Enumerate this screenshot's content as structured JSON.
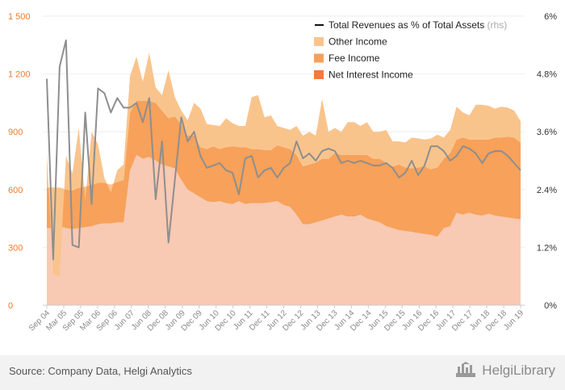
{
  "chart_data": {
    "type": "area",
    "title": "",
    "xlabel": "",
    "ylabel": "",
    "ylim": [
      0,
      1500
    ],
    "y2lim": [
      0,
      6
    ],
    "yticks": [
      "0",
      "300",
      "600",
      "900",
      "1 200",
      "1 500"
    ],
    "y2ticks": [
      "0%",
      "1.2%",
      "2.4%",
      "3.6%",
      "4.8%",
      "6%"
    ],
    "x_tick_labels": [
      "Sep 04",
      "Mar 05",
      "Sep 05",
      "Mar 06",
      "Sep 06",
      "Jun 07",
      "Jun 08",
      "Dec 08",
      "Jun 09",
      "Dec 09",
      "Jun 10",
      "Dec 10",
      "Jun 11",
      "Dec 11",
      "Jun 12",
      "Dec 12",
      "Jun 13",
      "Dec 13",
      "Jun 14",
      "Dec 14",
      "Jun 15",
      "Dec 15",
      "Jun 16",
      "Dec 16",
      "Jun 17",
      "Dec 17",
      "Jun 18",
      "Dec 18",
      "Jun 19"
    ],
    "grid": true,
    "legend_position": "top-right",
    "series": [
      {
        "name": "Net Interest Income",
        "kind": "area",
        "color": "#f8c9b3",
        "values": [
          400,
          400,
          410,
          400,
          395,
          400,
          405,
          410,
          420,
          425,
          425,
          430,
          430,
          700,
          780,
          760,
          770,
          750,
          730,
          720,
          710,
          650,
          600,
          580,
          560,
          540,
          535,
          540,
          530,
          525,
          540,
          525,
          530,
          530,
          530,
          535,
          540,
          520,
          510,
          470,
          420,
          420,
          430,
          440,
          450,
          460,
          470,
          460,
          460,
          470,
          450,
          440,
          430,
          410,
          400,
          390,
          385,
          380,
          375,
          370,
          365,
          355,
          400,
          410,
          480,
          470,
          480,
          470,
          465,
          475,
          465,
          460,
          455,
          450,
          445
        ]
      },
      {
        "name": "Fee Income",
        "kind": "area",
        "color": "#f7a15a",
        "values": [
          210,
          210,
          200,
          200,
          200,
          210,
          210,
          215,
          215,
          210,
          200,
          210,
          220,
          300,
          280,
          300,
          290,
          300,
          280,
          250,
          270,
          290,
          280,
          300,
          260,
          270,
          290,
          270,
          290,
          300,
          280,
          295,
          280,
          280,
          275,
          270,
          290,
          300,
          300,
          310,
          300,
          310,
          310,
          320,
          310,
          330,
          310,
          320,
          320,
          310,
          330,
          320,
          330,
          330,
          320,
          340,
          330,
          330,
          340,
          350,
          340,
          360,
          360,
          380,
          380,
          400,
          380,
          390,
          395,
          385,
          405,
          410,
          420,
          420,
          400
        ]
      },
      {
        "name": "Other Income",
        "kind": "area",
        "color": "#f9c48c",
        "values": [
          180,
          -450,
          -460,
          175,
          90,
          310,
          -70,
          275,
          200,
          25,
          -40,
          60,
          80,
          190,
          230,
          100,
          250,
          80,
          80,
          250,
          100,
          70,
          80,
          170,
          200,
          130,
          110,
          120,
          150,
          120,
          110,
          110,
          270,
          280,
          170,
          180,
          100,
          100,
          100,
          150,
          160,
          170,
          140,
          310,
          140,
          130,
          120,
          170,
          170,
          150,
          170,
          140,
          140,
          170,
          130,
          120,
          130,
          160,
          150,
          140,
          160,
          170,
          110,
          120,
          170,
          130,
          125,
          180,
          180,
          175,
          150,
          160,
          150,
          140,
          110
        ]
      },
      {
        "name": "Total Revenues as % of Total Assets",
        "name_suffix": "(rhs)",
        "kind": "line",
        "axis": "right",
        "color": "#8e8e8e",
        "values": [
          4.7,
          0.95,
          4.95,
          5.5,
          1.25,
          1.2,
          4.0,
          2.1,
          4.5,
          4.4,
          4.0,
          4.3,
          4.1,
          4.1,
          4.2,
          3.8,
          4.3,
          2.2,
          3.4,
          1.3,
          2.6,
          3.9,
          3.4,
          3.6,
          3.1,
          2.85,
          2.9,
          2.95,
          2.8,
          2.75,
          2.3,
          3.05,
          3.1,
          2.65,
          2.8,
          2.85,
          2.65,
          2.85,
          2.95,
          3.4,
          3.05,
          3.15,
          3.0,
          3.2,
          3.25,
          3.2,
          2.95,
          3.0,
          2.95,
          3.0,
          2.95,
          2.9,
          2.9,
          2.95,
          2.85,
          2.65,
          2.75,
          3.0,
          2.7,
          2.9,
          3.3,
          3.3,
          3.2,
          3.0,
          3.1,
          3.3,
          3.25,
          3.15,
          2.95,
          3.15,
          3.2,
          3.2,
          3.1,
          2.95,
          2.8
        ]
      }
    ]
  },
  "footer": {
    "source": "Source: Company Data, Helgi Analytics",
    "brand": "HelgiLibrary",
    "brand_icon": "helgi-library-logo-icon"
  },
  "colors": {
    "left_axis": "#f07a30",
    "right_axis": "#333333",
    "x_axis_labels": "#888888",
    "gridline": "#eeeeee",
    "legend_net_interest": "#f47a3d",
    "legend_fee": "#f7a15a",
    "legend_other": "#f9c48c"
  }
}
